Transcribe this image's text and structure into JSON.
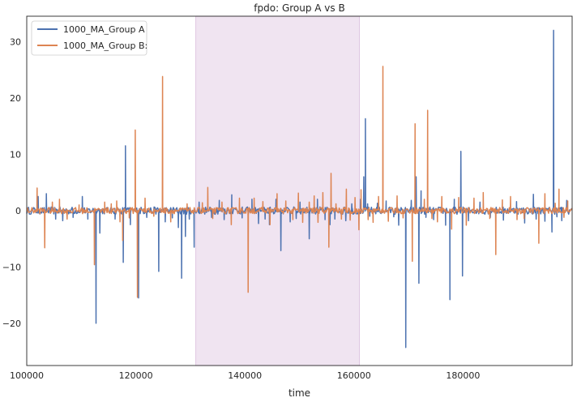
{
  "chart_data": {
    "type": "line",
    "title": "fpdo: Group A vs B",
    "xlabel": "time",
    "ylabel": "",
    "xlim": [
      100000,
      200000
    ],
    "ylim": [
      -27.5,
      34.5
    ],
    "xticks": [
      100000,
      120000,
      140000,
      160000,
      180000
    ],
    "yticks": [
      -20,
      -10,
      0,
      10,
      20,
      30
    ],
    "grid": false,
    "legend_position": "top-left",
    "highlight_span": {
      "x0": 131000,
      "x1": 161000,
      "color": "#f0e4f1"
    },
    "series": [
      {
        "name": "1000_MA_Group A",
        "color": "#4c72b0",
        "spikes": [
          [
            102100,
            2.5
          ],
          [
            103600,
            3.0
          ],
          [
            105300,
            -1.5
          ],
          [
            106600,
            -1.8
          ],
          [
            108500,
            -1.2
          ],
          [
            110200,
            2.5
          ],
          [
            111200,
            -1.5
          ],
          [
            112700,
            -20.0
          ],
          [
            113400,
            -4.0
          ],
          [
            116200,
            -1.5
          ],
          [
            117700,
            -9.2
          ],
          [
            118100,
            11.5
          ],
          [
            119000,
            -2.5
          ],
          [
            120500,
            -15.5
          ],
          [
            122000,
            -1.2
          ],
          [
            124200,
            -10.8
          ],
          [
            125400,
            -2.0
          ],
          [
            126700,
            -1.3
          ],
          [
            127800,
            -3.0
          ],
          [
            128400,
            -12.0
          ],
          [
            129100,
            -4.6
          ],
          [
            129800,
            -1.5
          ],
          [
            130700,
            -6.5
          ],
          [
            131600,
            1.5
          ],
          [
            133900,
            -1.2
          ],
          [
            135300,
            1.8
          ],
          [
            136200,
            -1.6
          ],
          [
            137600,
            2.8
          ],
          [
            139500,
            -1.3
          ],
          [
            141300,
            2.0
          ],
          [
            142500,
            -2.3
          ],
          [
            143700,
            -1.5
          ],
          [
            144500,
            -2.5
          ],
          [
            145700,
            2.0
          ],
          [
            146600,
            -7.1
          ],
          [
            148300,
            -2.0
          ],
          [
            149400,
            -1.4
          ],
          [
            150100,
            1.5
          ],
          [
            151800,
            -5.0
          ],
          [
            153300,
            2.0
          ],
          [
            154700,
            -1.6
          ],
          [
            155600,
            -2.5
          ],
          [
            156500,
            -1.5
          ],
          [
            158500,
            -1.8
          ],
          [
            159600,
            1.2
          ],
          [
            161200,
            2.0
          ],
          [
            161800,
            6.0
          ],
          [
            162100,
            16.3
          ],
          [
            162500,
            1.2
          ],
          [
            162900,
            -1.0
          ],
          [
            164300,
            1.3
          ],
          [
            165900,
            1.7
          ],
          [
            167300,
            -1.1
          ],
          [
            168200,
            -2.6
          ],
          [
            169500,
            -24.3
          ],
          [
            170500,
            1.8
          ],
          [
            171400,
            6.0
          ],
          [
            171900,
            -12.9
          ],
          [
            172300,
            3.5
          ],
          [
            173200,
            -1.2
          ],
          [
            174600,
            -1.6
          ],
          [
            176800,
            -2.6
          ],
          [
            177600,
            -15.8
          ],
          [
            178400,
            2.0
          ],
          [
            179600,
            10.5
          ],
          [
            179900,
            -11.6
          ],
          [
            181000,
            -1.8
          ],
          [
            183100,
            1.5
          ],
          [
            185000,
            -1.2
          ],
          [
            187400,
            -1.7
          ],
          [
            189800,
            1.6
          ],
          [
            191300,
            -2.2
          ],
          [
            192900,
            2.9
          ],
          [
            193400,
            -1.5
          ],
          [
            195000,
            -1.9
          ],
          [
            196300,
            -3.8
          ],
          [
            196600,
            32.0
          ],
          [
            197200,
            -1.1
          ],
          [
            198100,
            -1.8
          ],
          [
            199000,
            1.8
          ]
        ]
      },
      {
        "name": "1000_MA_Group B:",
        "color": "#dd8452",
        "spikes": [
          [
            101900,
            4.0
          ],
          [
            103300,
            -6.6
          ],
          [
            104700,
            1.5
          ],
          [
            106000,
            2.0
          ],
          [
            107400,
            -1.5
          ],
          [
            109600,
            1.0
          ],
          [
            112400,
            -9.6
          ],
          [
            114300,
            1.5
          ],
          [
            115500,
            1.2
          ],
          [
            116500,
            1.7
          ],
          [
            117100,
            -2.0
          ],
          [
            117600,
            -5.3
          ],
          [
            118800,
            -1.3
          ],
          [
            119900,
            14.3
          ],
          [
            120300,
            -15.4
          ],
          [
            121700,
            2.2
          ],
          [
            123300,
            -1.0
          ],
          [
            124900,
            23.8
          ],
          [
            126400,
            -2.0
          ],
          [
            129400,
            1.2
          ],
          [
            132200,
            1.4
          ],
          [
            133200,
            4.1
          ],
          [
            134100,
            -1.4
          ],
          [
            135800,
            1.5
          ],
          [
            137500,
            -2.5
          ],
          [
            139000,
            2.2
          ],
          [
            140600,
            -14.5
          ],
          [
            141700,
            2.2
          ],
          [
            143300,
            1.6
          ],
          [
            144600,
            -2.5
          ],
          [
            145900,
            3.0
          ],
          [
            147500,
            1.7
          ],
          [
            148800,
            -1.6
          ],
          [
            149800,
            3.1
          ],
          [
            150600,
            -2.1
          ],
          [
            151800,
            1.5
          ],
          [
            152700,
            2.6
          ],
          [
            153400,
            -2.1
          ],
          [
            154300,
            3.2
          ],
          [
            155400,
            -6.5
          ],
          [
            155800,
            6.6
          ],
          [
            156700,
            1.2
          ],
          [
            157700,
            -1.5
          ],
          [
            158600,
            3.8
          ],
          [
            159300,
            -1.7
          ],
          [
            160200,
            2.3
          ],
          [
            160900,
            -3.4
          ],
          [
            161300,
            3.7
          ],
          [
            162600,
            -1.6
          ],
          [
            163500,
            -2.1
          ],
          [
            164500,
            2.5
          ],
          [
            165300,
            25.6
          ],
          [
            166300,
            -1.9
          ],
          [
            167900,
            2.6
          ],
          [
            169000,
            -1.3
          ],
          [
            170700,
            -9.0
          ],
          [
            171200,
            15.4
          ],
          [
            172900,
            2.0
          ],
          [
            173500,
            17.8
          ],
          [
            174300,
            -1.4
          ],
          [
            175300,
            -2.0
          ],
          [
            176100,
            2.5
          ],
          [
            177900,
            -3.3
          ],
          [
            179200,
            2.3
          ],
          [
            180600,
            -2.6
          ],
          [
            182000,
            2.2
          ],
          [
            183700,
            3.2
          ],
          [
            184900,
            -1.4
          ],
          [
            186000,
            -7.8
          ],
          [
            187200,
            1.9
          ],
          [
            188700,
            2.5
          ],
          [
            189900,
            -1.6
          ],
          [
            191200,
            -1.4
          ],
          [
            193900,
            -5.8
          ],
          [
            195000,
            3.0
          ],
          [
            196900,
            1.3
          ],
          [
            197600,
            3.8
          ],
          [
            198500,
            -1.2
          ],
          [
            199200,
            1.7
          ]
        ]
      }
    ]
  }
}
